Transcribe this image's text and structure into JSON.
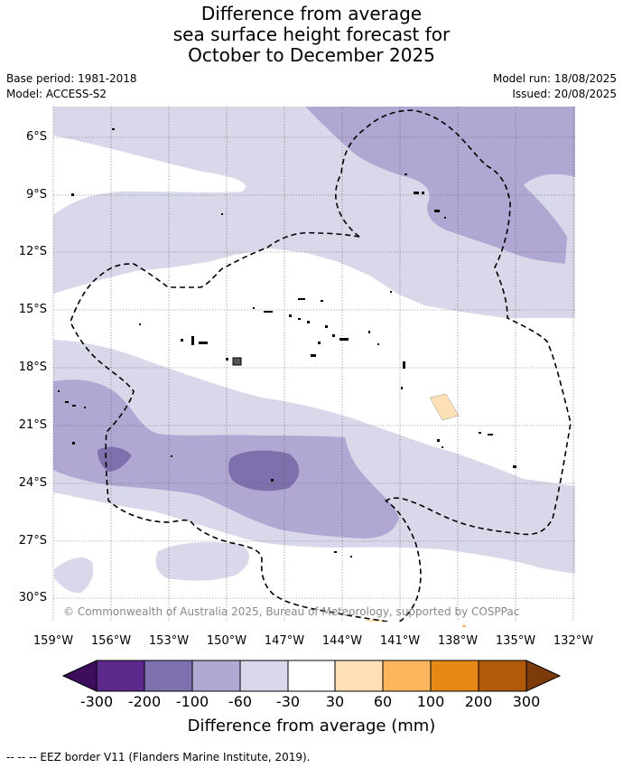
{
  "title": {
    "line1": "Difference from average",
    "line2": "sea surface height forecast for",
    "line3": "October to December 2025"
  },
  "meta": {
    "base_period": "Base period: 1981-2018",
    "model": "Model: ACCESS-S2",
    "model_run": "Model run: 18/08/2025",
    "issued": "Issued: 20/08/2025"
  },
  "map": {
    "lat_labels": [
      "6°S",
      "9°S",
      "12°S",
      "15°S",
      "18°S",
      "21°S",
      "24°S",
      "27°S",
      "30°S"
    ],
    "lon_labels": [
      "159°W",
      "156°W",
      "153°W",
      "150°W",
      "147°W",
      "144°W",
      "141°W",
      "138°W",
      "135°W",
      "132°W"
    ],
    "copyright": "© Commonwealth of Australia 2025, Bureau of Meteorology, supported by COSPPac",
    "colors": {
      "c_-30_-60": "#d8d8ea",
      "c_-60_-100": "#b0a8d2",
      "c_-100_-200": "#7e6fad",
      "c_30_60": "#fde0b5",
      "eez": "#000000",
      "grid": "#555555"
    }
  },
  "colorbar": {
    "ticks": [
      "-300",
      "-200",
      "-100",
      "-60",
      "-30",
      "30",
      "60",
      "100",
      "200",
      "300"
    ],
    "colors": [
      "#3c0e5c",
      "#5c2a8c",
      "#8070b0",
      "#b0aad2",
      "#d8d8ea",
      "#ffffff",
      "#fde0b5",
      "#fbb65d",
      "#e58816",
      "#b15b0a",
      "#7c3b0a"
    ],
    "title": "Difference from average (mm)"
  },
  "footnote": "--  --  -- EEZ border V11 (Flanders Marine Institute, 2019)."
}
